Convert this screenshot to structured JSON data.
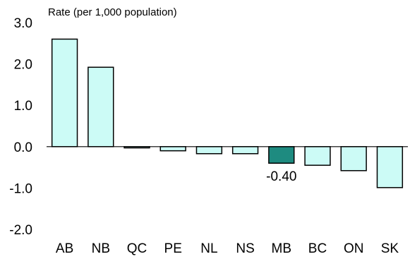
{
  "chart_data": {
    "type": "bar",
    "ylabel": "Rate (per  1,000 population)",
    "categories": [
      "AB",
      "NB",
      "QC",
      "PE",
      "NL",
      "NS",
      "MB",
      "BC",
      "ON",
      "SK"
    ],
    "values": [
      2.6,
      1.92,
      -0.03,
      -0.1,
      -0.17,
      -0.17,
      -0.4,
      -0.45,
      -0.58,
      -0.99
    ],
    "ylim": [
      -2.0,
      3.0
    ],
    "yticks": [
      "3.0",
      "2.0",
      "1.0",
      "0.0",
      "-1.0",
      "-2.0"
    ],
    "highlight_index": 6,
    "data_labels": [
      {
        "category": "MB",
        "text": "-0.40"
      }
    ],
    "grid": false,
    "legend": "none",
    "colors": {
      "bar_fill": "#ccfbf6",
      "highlight_fill": "#1e8b80",
      "bar_stroke": "#000000"
    }
  }
}
